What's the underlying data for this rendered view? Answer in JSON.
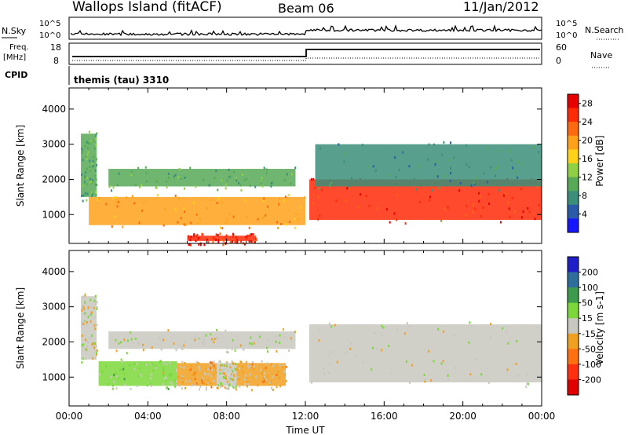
{
  "header": {
    "station": "Wallops Island (fitACF)",
    "beam": "Beam 06",
    "date": "11/Jan/2012"
  },
  "noise_panel": {
    "left_label": "N.Sky",
    "right_label": "N.Search",
    "left_ticks": [
      "10^5",
      "10^0"
    ],
    "right_ticks": [
      "10^5",
      "10^0"
    ]
  },
  "freq_panel": {
    "label_top": "Freq.",
    "label_unit": "[MHz]",
    "left_ticks": [
      "18",
      "8"
    ],
    "right_label": "Nave",
    "right_ticks": [
      "60",
      "0"
    ],
    "cpid_label": "CPID",
    "cpid_text": "themis (tau) 3310"
  },
  "colors": {
    "power": [
      "#1616ff",
      "#2a5aa8",
      "#3b8e7a",
      "#57a957",
      "#8fd044",
      "#ffd21a",
      "#ffa21a",
      "#ff6a10",
      "#ff2a08",
      "#e80000"
    ],
    "velocity": [
      "#1f1fc8",
      "#2e6e9c",
      "#3c9b4c",
      "#7cd83a",
      "#c8c8c0",
      "#f0a020",
      "#ff7010",
      "#ff3010",
      "#e00000"
    ]
  },
  "chart_data": [
    {
      "type": "heatmap",
      "panel": "power",
      "xlabel": "",
      "ylabel": "Slant Range [km]",
      "xlim": [
        "00:00",
        "24:00"
      ],
      "ylim": [
        180,
        4600
      ],
      "y_ticks": [
        "1000",
        "2000",
        "3000",
        "4000"
      ],
      "colorbar": {
        "label": "Power [dB]",
        "ticks": [
          "4",
          "8",
          "12",
          "16",
          "20",
          "24",
          "28"
        ],
        "range": [
          0,
          30
        ]
      },
      "bands": [
        {
          "t_start": 0.6,
          "t_end": 1.4,
          "r_low": 1500,
          "r_high": 3300,
          "value": 10
        },
        {
          "t_start": 1.0,
          "t_end": 12.0,
          "r_low": 700,
          "r_high": 1500,
          "value": 20
        },
        {
          "t_start": 2.0,
          "t_end": 11.5,
          "r_low": 1800,
          "r_high": 2300,
          "value": 11
        },
        {
          "t_start": 6.0,
          "t_end": 9.5,
          "r_low": 250,
          "r_high": 400,
          "value": 26
        },
        {
          "t_start": 12.2,
          "t_end": 24.0,
          "r_low": 850,
          "r_high": 2000,
          "value": 26
        },
        {
          "t_start": 12.5,
          "t_end": 24.0,
          "r_low": 1800,
          "r_high": 3000,
          "value": 8
        }
      ]
    },
    {
      "type": "heatmap",
      "panel": "velocity",
      "xlabel": "Time UT",
      "ylabel": "Slant Range [km]",
      "xlim": [
        "00:00",
        "24:00"
      ],
      "ylim": [
        180,
        4600
      ],
      "x_ticks": [
        "00:00",
        "04:00",
        "08:00",
        "12:00",
        "16:00",
        "20:00",
        "00:00"
      ],
      "y_ticks": [
        "1000",
        "2000",
        "3000",
        "4000"
      ],
      "colorbar": {
        "label": "Velocity [m s-1]",
        "ticks": [
          "200",
          "100",
          "50",
          "15",
          "-15",
          "-50",
          "-100",
          "-200"
        ],
        "range": [
          -250,
          250
        ]
      },
      "bands": [
        {
          "t_start": 0.6,
          "t_end": 1.4,
          "r_low": 1500,
          "r_high": 3300,
          "value": 0
        },
        {
          "t_start": 1.5,
          "t_end": 5.5,
          "r_low": 750,
          "r_high": 1450,
          "value": 30
        },
        {
          "t_start": 5.5,
          "t_end": 7.5,
          "r_low": 750,
          "r_high": 1400,
          "value": -40
        },
        {
          "t_start": 7.5,
          "t_end": 8.5,
          "r_low": 750,
          "r_high": 1400,
          "value": 0
        },
        {
          "t_start": 8.5,
          "t_end": 11.0,
          "r_low": 750,
          "r_high": 1400,
          "value": -40
        },
        {
          "t_start": 2.0,
          "t_end": 11.5,
          "r_low": 1800,
          "r_high": 2300,
          "value": 0
        },
        {
          "t_start": 12.2,
          "t_end": 24.0,
          "r_low": 850,
          "r_high": 2500,
          "value": 0
        }
      ]
    }
  ]
}
